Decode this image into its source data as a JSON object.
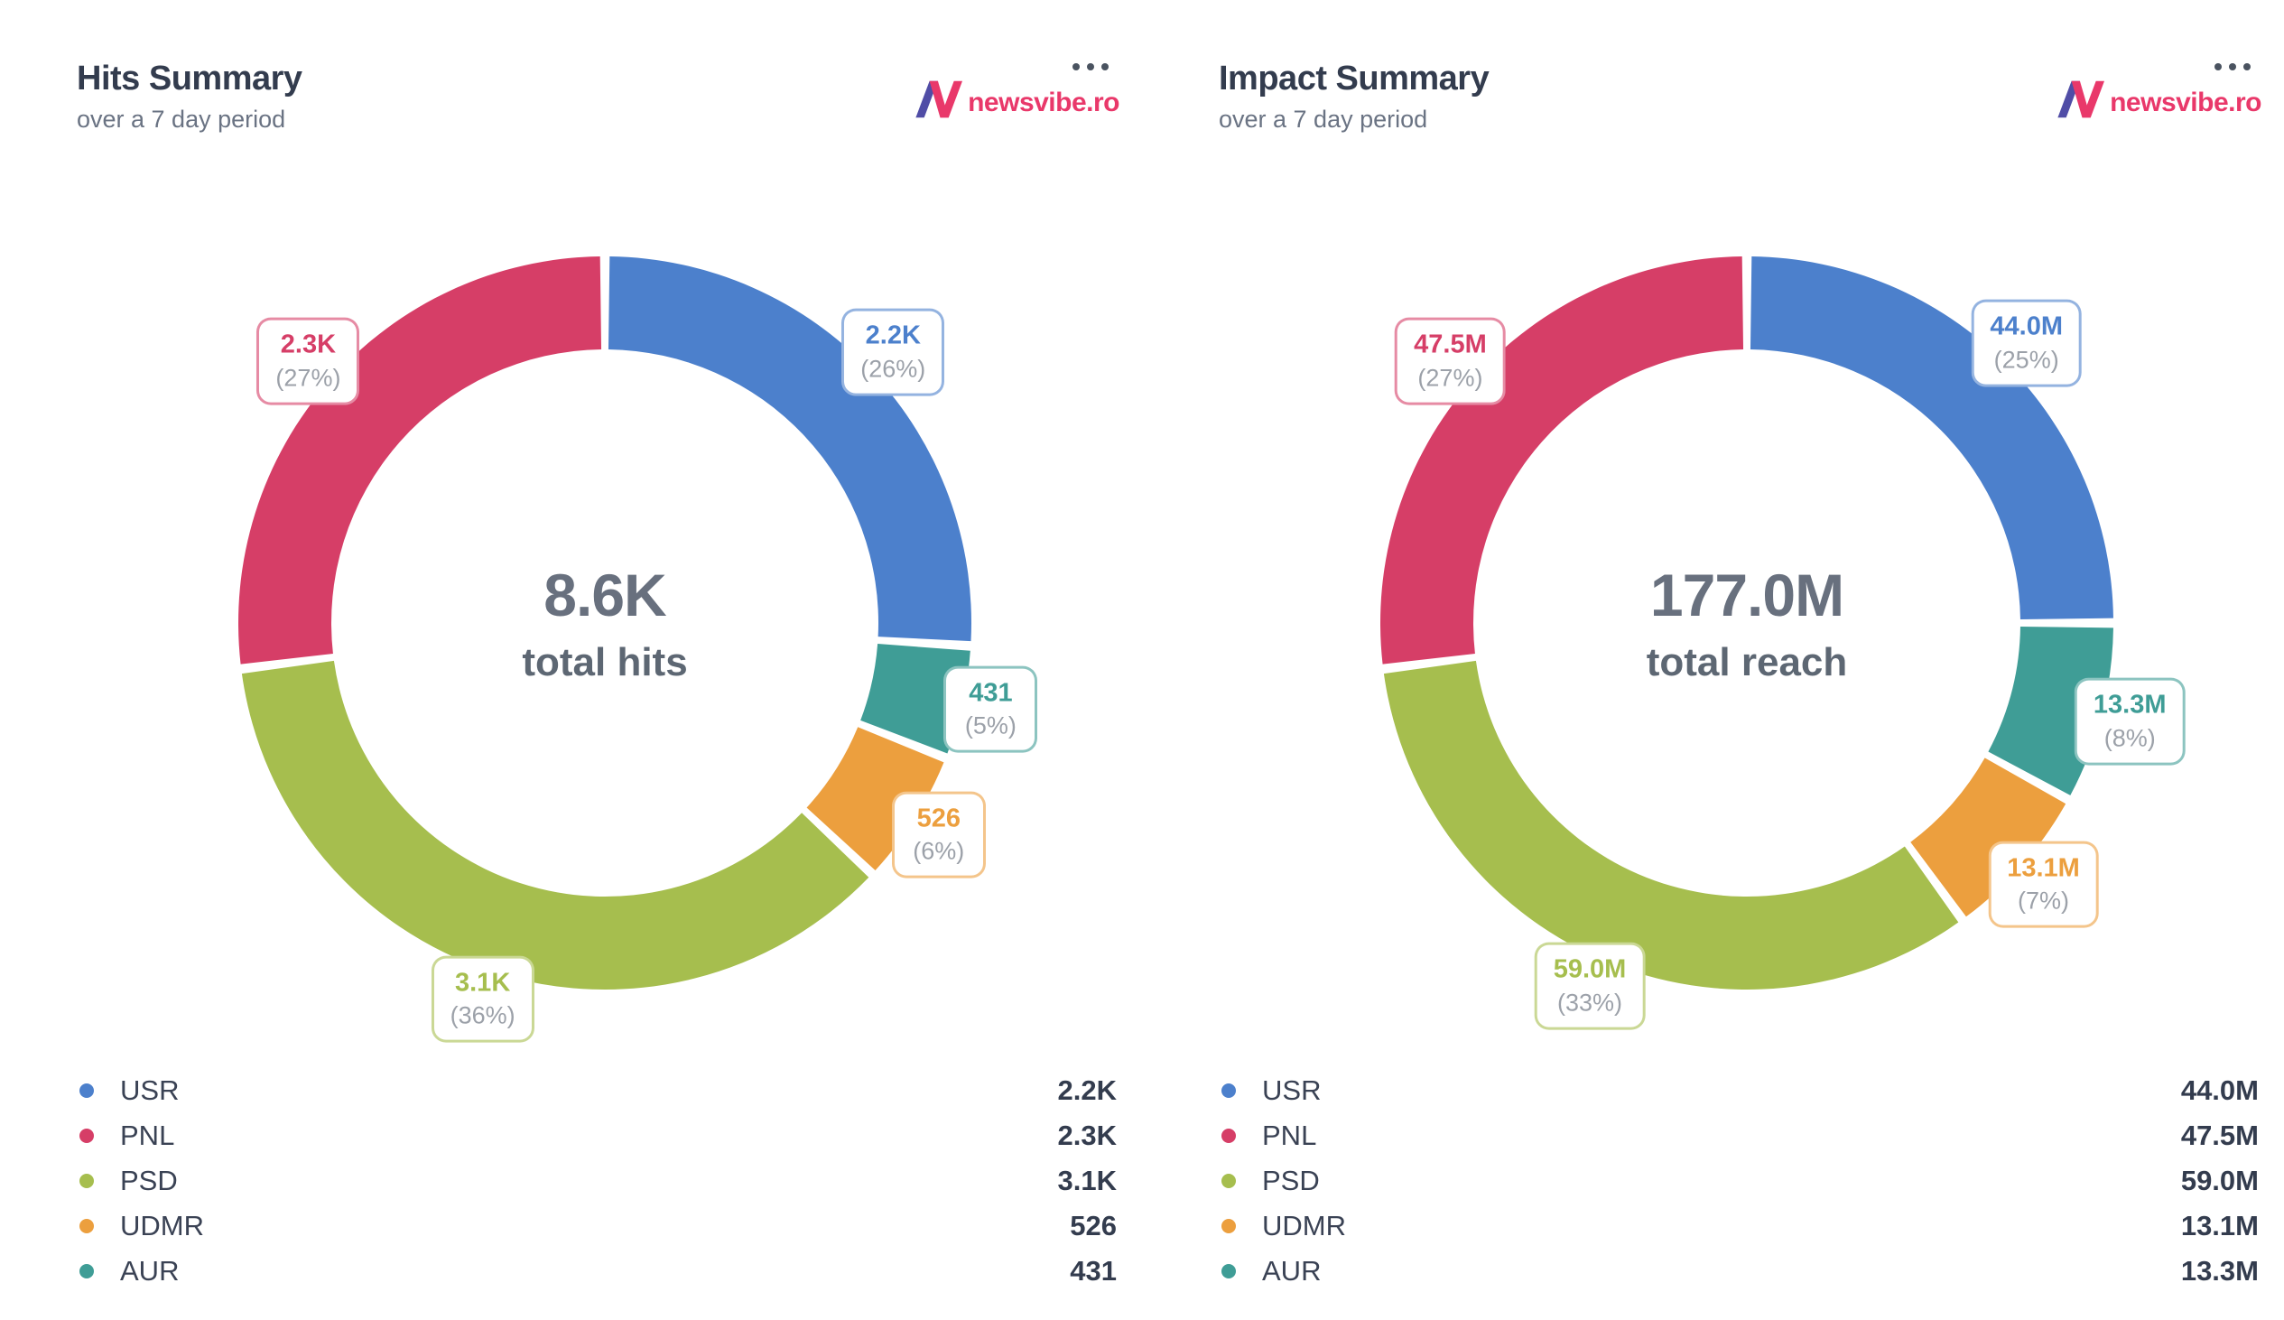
{
  "brand": {
    "logo_text": "newsvibe.ro",
    "logo_icon": "newsvibe-n",
    "menu_icon": "ellipsis-menu",
    "colors": {
      "logo_purple": "#504da6",
      "logo_pink": "#e9386a",
      "menu_dot": "#4a5360"
    }
  },
  "chart_data": [
    {
      "type": "pie",
      "subtype": "donut",
      "title": "Hits Summary",
      "subtitle": "over a 7 day period",
      "center": {
        "value": "8.6K",
        "label": "total hits"
      },
      "legend_position": "bottom",
      "start_angle_deg": 0,
      "clockwise": true,
      "slices": [
        {
          "label": "USR",
          "display": "2.2K",
          "pct": 26,
          "color": "#4c80cc"
        },
        {
          "label": "AUR",
          "display": "431",
          "pct": 5,
          "color": "#3f9d96"
        },
        {
          "label": "UDMR",
          "display": "526",
          "pct": 6,
          "color": "#ec9f3e"
        },
        {
          "label": "PSD",
          "display": "3.1K",
          "pct": 36,
          "color": "#a6be4e"
        },
        {
          "label": "PNL",
          "display": "2.3K",
          "pct": 27,
          "color": "#d63e67"
        }
      ],
      "legend_order": [
        "USR",
        "PNL",
        "PSD",
        "UDMR",
        "AUR"
      ]
    },
    {
      "type": "pie",
      "subtype": "donut",
      "title": "Impact Summary",
      "subtitle": "over a 7 day period",
      "center": {
        "value": "177.0M",
        "label": "total reach"
      },
      "legend_position": "bottom",
      "start_angle_deg": 0,
      "clockwise": true,
      "slices": [
        {
          "label": "USR",
          "display": "44.0M",
          "pct": 25,
          "color": "#4c80cc"
        },
        {
          "label": "AUR",
          "display": "13.3M",
          "pct": 8,
          "color": "#3f9d96"
        },
        {
          "label": "UDMR",
          "display": "13.1M",
          "pct": 7,
          "color": "#ec9f3e"
        },
        {
          "label": "PSD",
          "display": "59.0M",
          "pct": 33,
          "color": "#a6be4e"
        },
        {
          "label": "PNL",
          "display": "47.5M",
          "pct": 27,
          "color": "#d63e67"
        }
      ],
      "legend_order": [
        "USR",
        "PNL",
        "PSD",
        "UDMR",
        "AUR"
      ]
    }
  ]
}
